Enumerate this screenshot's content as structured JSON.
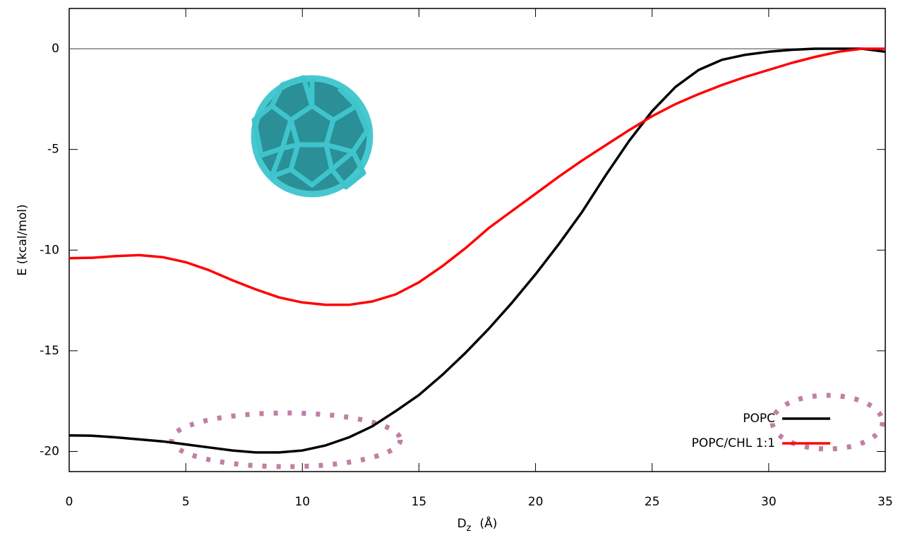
{
  "chart_data": {
    "type": "line",
    "y_label": "E  (kcal/mol)",
    "x_label": "D",
    "x_label_sub": "z",
    "x_label_unit": "(Å)",
    "x": [
      0,
      1,
      2,
      3,
      4,
      5,
      6,
      7,
      8,
      9,
      10,
      11,
      12,
      13,
      14,
      15,
      16,
      17,
      18,
      19,
      20,
      21,
      22,
      23,
      24,
      25,
      26,
      27,
      28,
      29,
      30,
      31,
      32,
      33,
      34,
      35
    ],
    "series": [
      {
        "name": "POPC",
        "color": "#000000",
        "values": [
          -19.2,
          -19.22,
          -19.3,
          -19.4,
          -19.5,
          -19.65,
          -19.8,
          -19.95,
          -20.05,
          -20.05,
          -19.95,
          -19.7,
          -19.3,
          -18.75,
          -18.0,
          -17.2,
          -16.2,
          -15.1,
          -13.9,
          -12.6,
          -11.2,
          -9.7,
          -8.1,
          -6.3,
          -4.6,
          -3.1,
          -1.9,
          -1.05,
          -0.55,
          -0.3,
          -0.15,
          -0.05,
          0,
          0,
          0,
          -0.15
        ]
      },
      {
        "name": "POPC/CHL 1:1",
        "color": "#ff0000",
        "values": [
          -10.4,
          -10.38,
          -10.3,
          -10.25,
          -10.35,
          -10.6,
          -11.0,
          -11.5,
          -11.95,
          -12.35,
          -12.6,
          -12.72,
          -12.72,
          -12.55,
          -12.2,
          -11.6,
          -10.8,
          -9.9,
          -8.9,
          -8.05,
          -7.2,
          -6.35,
          -5.55,
          -4.8,
          -4.05,
          -3.35,
          -2.75,
          -2.25,
          -1.8,
          -1.4,
          -1.05,
          -0.7,
          -0.4,
          -0.15,
          0,
          0
        ]
      }
    ],
    "xlim": [
      0,
      35
    ],
    "xticks": [
      0,
      5,
      10,
      15,
      20,
      25,
      30,
      35
    ],
    "ylim": [
      -21,
      2
    ],
    "yticks": [
      -20,
      -15,
      -10,
      -5,
      0
    ],
    "hline": 0,
    "legend": "lower right"
  }
}
